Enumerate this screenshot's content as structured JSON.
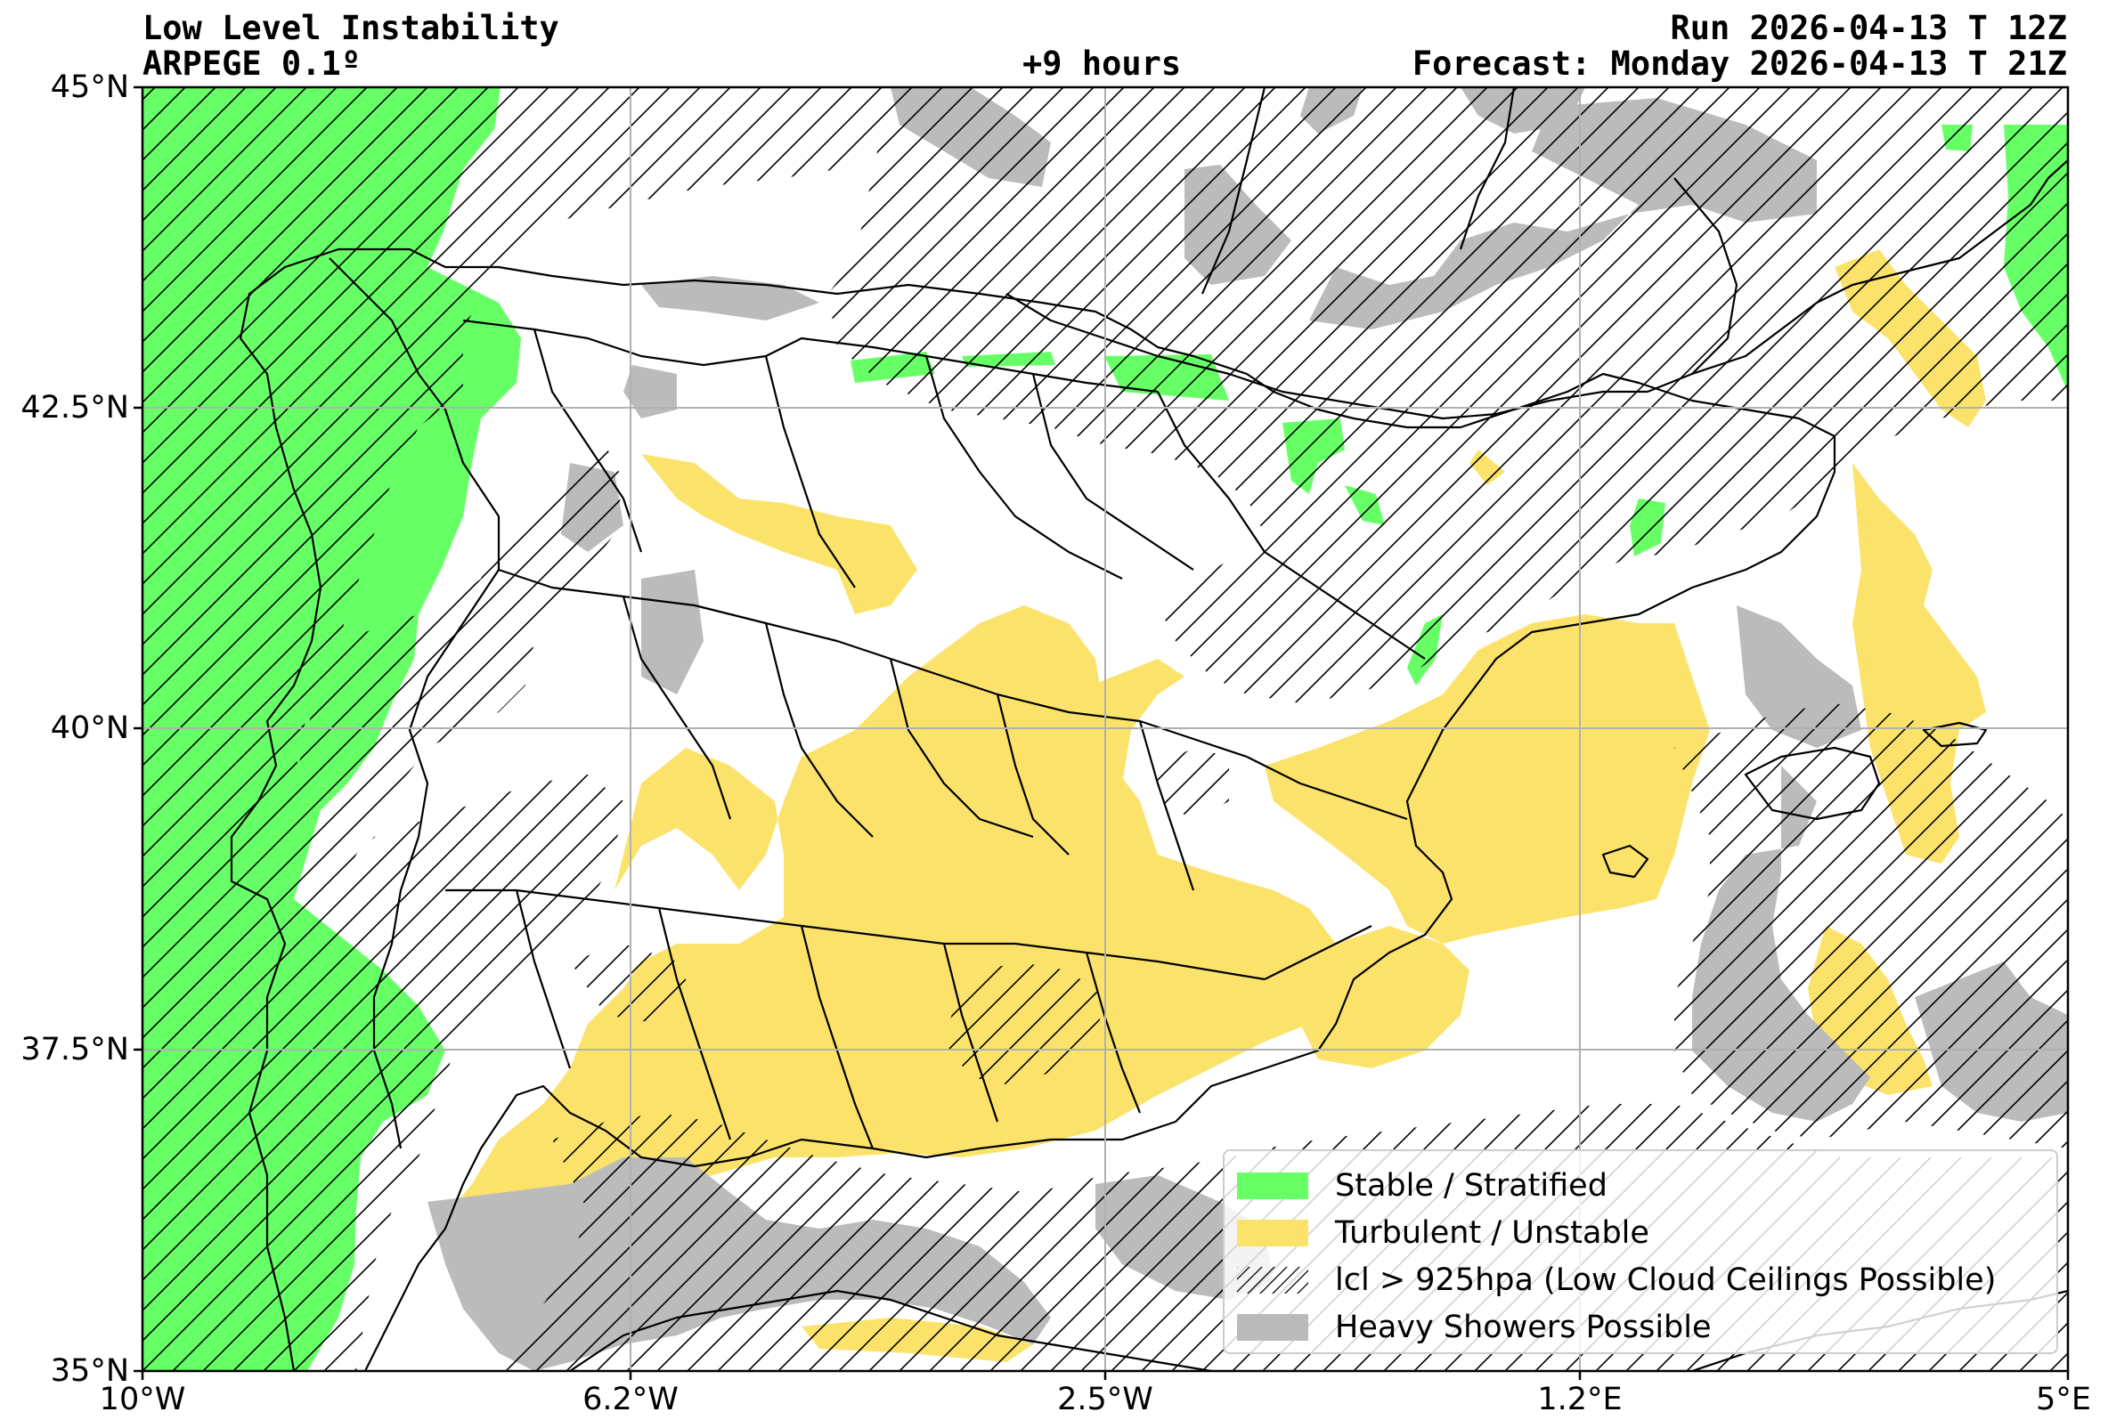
{
  "header": {
    "title": "Low Level Instability",
    "model": "ARPEGE 0.1º",
    "lead": "+9 hours",
    "run": "Run 2026-04-13 T 12Z",
    "forecast": "Forecast: Monday 2026-04-13 T 21Z"
  },
  "axes": {
    "lat_ticks": [
      "45°N",
      "42.5°N",
      "40°N",
      "37.5°N",
      "35°N"
    ],
    "lon_ticks": [
      "10°W",
      "6.2°W",
      "2.5°W",
      "1.2°E",
      "5°E"
    ]
  },
  "legend": {
    "stable": "Stable / Stratified",
    "turbulent": "Turbulent / Unstable",
    "lcl": "lcl > 925hpa (Low Cloud Ceilings Possible)",
    "showers": "Heavy Showers Possible"
  },
  "colors": {
    "stable": "#66ff66",
    "turbulent": "#fbe36b",
    "showers": "#bbbbbb",
    "grid": "#b0b0b0",
    "coast": "#000000"
  }
}
